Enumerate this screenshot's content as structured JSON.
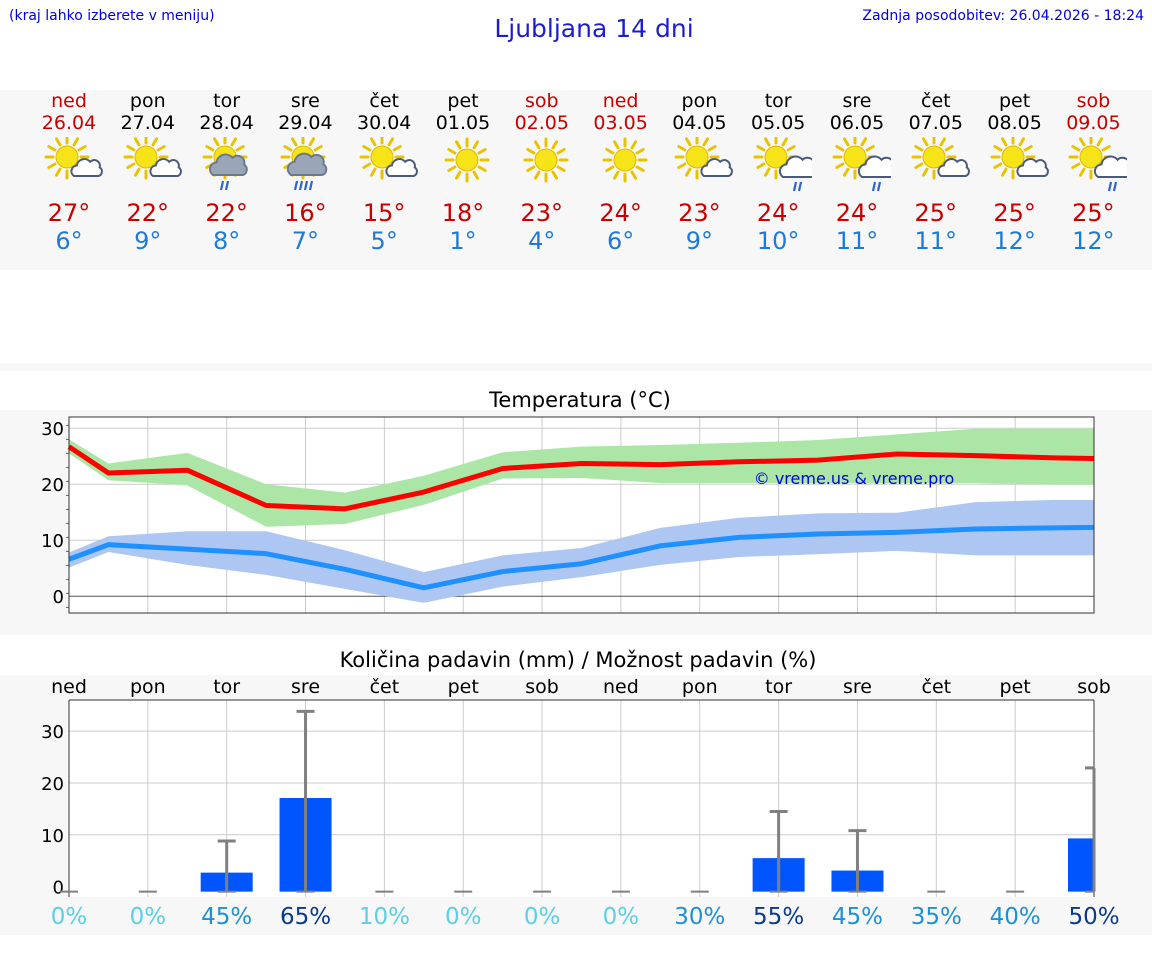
{
  "header": {
    "hint": "(kraj lahko izberete v meniju)",
    "title": "Ljubljana 14 dni",
    "updated": "Zadnja posodobitev: 26.04.2026 - 18:24"
  },
  "colors": {
    "weekend": "#c80000",
    "weekday": "#000000",
    "max_temp": "#c80000",
    "min_temp": "#1e7ad6",
    "max_line": "#ff0000",
    "max_band": "#abe6a6",
    "min_line": "#1e90ff",
    "min_band": "#aec6f2",
    "precip_bar": "#0055ff",
    "error_bar": "#808080",
    "prob_low": "#5ad0e6",
    "prob_mid": "#1e90d6",
    "prob_high": "#0a3a8c",
    "watermark": "#0000dd"
  },
  "days": [
    {
      "name": "ned",
      "date": "26.04",
      "weekend": true,
      "max": "27°",
      "min": "6°",
      "icon": "sun-cloud-icon"
    },
    {
      "name": "pon",
      "date": "27.04",
      "weekend": false,
      "max": "22°",
      "min": "9°",
      "icon": "sun-cloud-icon"
    },
    {
      "name": "tor",
      "date": "28.04",
      "weekend": false,
      "max": "22°",
      "min": "8°",
      "icon": "sun-rain-cloud-icon"
    },
    {
      "name": "sre",
      "date": "29.04",
      "weekend": false,
      "max": "16°",
      "min": "7°",
      "icon": "sun-heavy-rain-cloud-icon"
    },
    {
      "name": "čet",
      "date": "30.04",
      "weekend": false,
      "max": "15°",
      "min": "5°",
      "icon": "sun-cloud-icon"
    },
    {
      "name": "pet",
      "date": "01.05",
      "weekend": false,
      "max": "18°",
      "min": "1°",
      "icon": "sun-icon"
    },
    {
      "name": "sob",
      "date": "02.05",
      "weekend": true,
      "max": "23°",
      "min": "4°",
      "icon": "sun-icon"
    },
    {
      "name": "ned",
      "date": "03.05",
      "weekend": true,
      "max": "24°",
      "min": "6°",
      "icon": "sun-icon"
    },
    {
      "name": "pon",
      "date": "04.05",
      "weekend": false,
      "max": "23°",
      "min": "9°",
      "icon": "sun-cloud-icon"
    },
    {
      "name": "tor",
      "date": "05.05",
      "weekend": false,
      "max": "24°",
      "min": "10°",
      "icon": "sun-shower-icon"
    },
    {
      "name": "sre",
      "date": "06.05",
      "weekend": false,
      "max": "24°",
      "min": "11°",
      "icon": "sun-shower-icon"
    },
    {
      "name": "čet",
      "date": "07.05",
      "weekend": false,
      "max": "25°",
      "min": "11°",
      "icon": "sun-cloud-icon"
    },
    {
      "name": "pet",
      "date": "08.05",
      "weekend": false,
      "max": "25°",
      "min": "12°",
      "icon": "sun-cloud-icon"
    },
    {
      "name": "sob",
      "date": "09.05",
      "weekend": true,
      "max": "25°",
      "min": "12°",
      "icon": "sun-shower-icon"
    }
  ],
  "chart_data": [
    {
      "type": "line",
      "title": "Temperatura (°C)",
      "watermark": "© vreme.us & vreme.pro",
      "ylim": [
        -3,
        32
      ],
      "yticks": [
        0,
        10,
        20,
        30
      ],
      "grid": true,
      "x": [
        0,
        0.5,
        1.5,
        2.5,
        3.5,
        4.5,
        5.5,
        6.5,
        7.5,
        8.5,
        9.5,
        10.5,
        11.5,
        12.5,
        13
      ],
      "series": [
        {
          "values": [
            26.7,
            22.0,
            22.5,
            16.2,
            15.6,
            18.6,
            22.8,
            23.7,
            23.5,
            24.0,
            24.3,
            25.4,
            25.1,
            24.7,
            24.6
          ],
          "band_low": [
            25.5,
            20.7,
            19.8,
            12.4,
            12.9,
            16.3,
            21.0,
            21.1,
            20.2,
            20.2,
            20.2,
            20.2,
            20.2,
            19.9,
            19.9
          ],
          "band_high": [
            28.0,
            23.7,
            25.6,
            20.0,
            18.5,
            21.5,
            25.7,
            26.7,
            27.0,
            27.4,
            27.9,
            28.9,
            29.9,
            29.9,
            29.9
          ]
        },
        {
          "values": [
            6.6,
            9.2,
            8.4,
            7.6,
            4.8,
            1.5,
            4.4,
            5.8,
            9.0,
            10.5,
            11.1,
            11.4,
            12.0,
            12.2,
            12.3
          ],
          "band_low": [
            5.1,
            7.9,
            5.6,
            3.8,
            1.3,
            -1.2,
            1.7,
            3.4,
            5.6,
            7.0,
            7.5,
            8.1,
            7.3,
            7.3,
            7.3
          ],
          "band_high": [
            7.8,
            10.7,
            11.6,
            11.6,
            8.2,
            4.3,
            7.3,
            8.6,
            12.2,
            14.0,
            14.8,
            14.9,
            16.8,
            17.2,
            17.2
          ]
        }
      ]
    },
    {
      "type": "bar",
      "title": "Količina padavin (mm) / Možnost padavin (%)",
      "ylim": [
        -2,
        36
      ],
      "yticks": [
        0,
        10,
        20,
        30
      ],
      "grid": true,
      "categories": [
        "ned",
        "pon",
        "tor",
        "sre",
        "čet",
        "pet",
        "sob",
        "ned",
        "pon",
        "tor",
        "sre",
        "čet",
        "pet",
        "sob"
      ],
      "values": [
        0,
        0,
        2.7,
        17.1,
        0,
        0,
        0,
        0,
        0,
        5.5,
        3.1,
        0,
        0,
        9.3
      ],
      "error_high": [
        0,
        0,
        8.8,
        33.8,
        0,
        0,
        0,
        0,
        0,
        14.5,
        10.8,
        0,
        0,
        22.9
      ],
      "error_low": [
        0,
        0,
        0,
        0,
        0,
        0,
        0,
        0,
        0,
        0,
        0,
        0,
        0,
        0
      ],
      "probability": [
        "0%",
        "0%",
        "45%",
        "65%",
        "10%",
        "0%",
        "0%",
        "0%",
        "30%",
        "55%",
        "45%",
        "35%",
        "40%",
        "50%"
      ],
      "probability_values": [
        0,
        0,
        45,
        65,
        10,
        0,
        0,
        0,
        30,
        55,
        45,
        35,
        40,
        50
      ]
    }
  ]
}
